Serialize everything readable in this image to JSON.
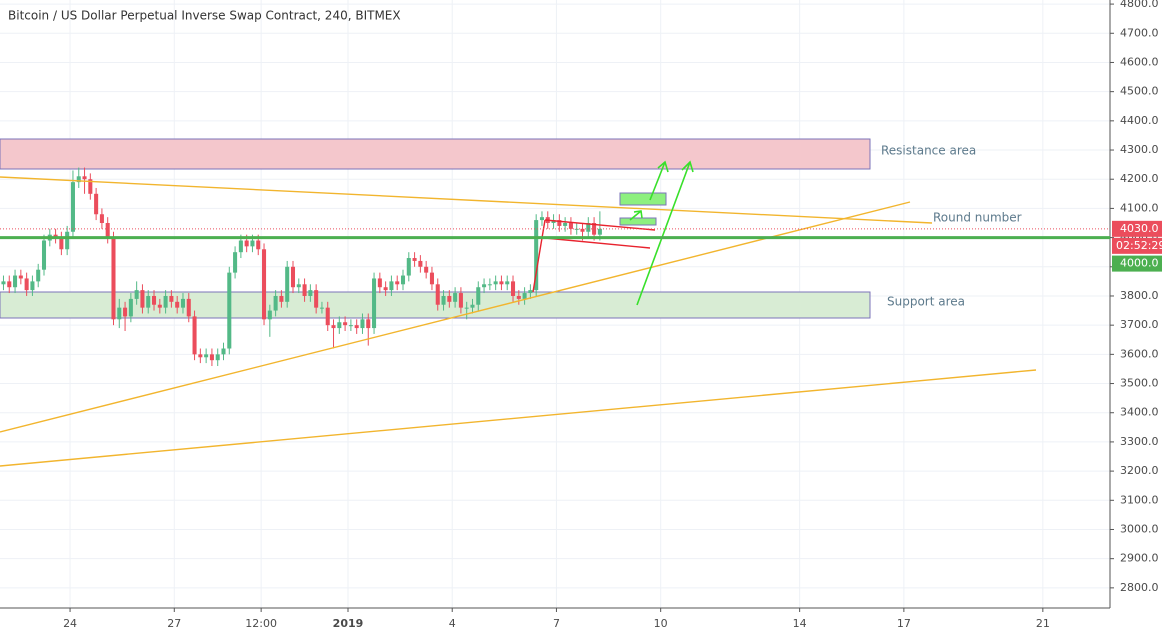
{
  "chart_data": {
    "type": "candlestick",
    "title": "Bitcoin / US Dollar Perpetual Inverse Swap Contract, 240, BITMEX",
    "open": [
      3840,
      3850,
      3830,
      3870,
      3860,
      3820,
      3850,
      3890,
      3990,
      4010,
      4000,
      3960,
      4020,
      4190,
      4210,
      4200,
      4150,
      4080,
      4050,
      4000,
      3720,
      3760,
      3730,
      3790,
      3820,
      3760,
      3800,
      3770,
      3760,
      3800,
      3780,
      3760,
      3790,
      3730,
      3600,
      3590,
      3600,
      3580,
      3600,
      3620,
      3880,
      3950,
      3990,
      3970,
      3990,
      3960,
      3720,
      3750,
      3800,
      3780,
      3900,
      3830,
      3840,
      3800,
      3820,
      3760,
      3760,
      3700,
      3690,
      3710,
      3700,
      3700,
      3690,
      3720,
      3690,
      3860,
      3830,
      3820,
      3850,
      3840,
      3870,
      3930,
      3920,
      3900,
      3880,
      3840,
      3770,
      3800,
      3780,
      3810,
      3760,
      3760,
      3770,
      3830,
      3840,
      3840,
      3850,
      3840,
      3850,
      3800,
      3790,
      3810,
      3820,
      4060,
      4070,
      4050,
      4060,
      4040,
      4050,
      4030,
      4030,
      4020,
      4050,
      4010
    ],
    "high": [
      3870,
      3870,
      3890,
      3890,
      3880,
      3870,
      3910,
      4010,
      4030,
      4030,
      4020,
      4040,
      4230,
      4240,
      4240,
      4220,
      4170,
      4100,
      4070,
      4020,
      3790,
      3780,
      3810,
      3850,
      3840,
      3820,
      3820,
      3790,
      3820,
      3820,
      3800,
      3810,
      3810,
      3750,
      3620,
      3620,
      3620,
      3620,
      3640,
      3900,
      3970,
      4010,
      4010,
      4010,
      4010,
      3980,
      3770,
      3820,
      3820,
      3920,
      3920,
      3860,
      3860,
      3840,
      3840,
      3780,
      3780,
      3720,
      3730,
      3730,
      3720,
      3720,
      3740,
      3740,
      3880,
      3880,
      3850,
      3870,
      3870,
      3890,
      3950,
      3950,
      3940,
      3920,
      3900,
      3860,
      3820,
      3820,
      3830,
      3830,
      3780,
      3790,
      3850,
      3860,
      3860,
      3870,
      3870,
      3870,
      3870,
      3820,
      3830,
      3840,
      4080,
      4090,
      4090,
      4080,
      4080,
      4070,
      4070,
      4050,
      4050,
      4070,
      4070,
      4090
    ],
    "low": [
      3820,
      3810,
      3810,
      3840,
      3800,
      3800,
      3830,
      3870,
      3970,
      3980,
      3940,
      3940,
      4000,
      4170,
      4150,
      4130,
      4060,
      4030,
      3980,
      3700,
      3690,
      3680,
      3710,
      3770,
      3740,
      3740,
      3750,
      3740,
      3740,
      3760,
      3740,
      3740,
      3710,
      3580,
      3570,
      3570,
      3560,
      3560,
      3580,
      3600,
      3860,
      3930,
      3950,
      3950,
      3940,
      3700,
      3660,
      3730,
      3760,
      3760,
      3810,
      3810,
      3780,
      3780,
      3740,
      3740,
      3680,
      3620,
      3670,
      3680,
      3680,
      3670,
      3670,
      3630,
      3670,
      3810,
      3800,
      3800,
      3820,
      3820,
      3850,
      3900,
      3880,
      3860,
      3820,
      3750,
      3750,
      3760,
      3760,
      3740,
      3720,
      3740,
      3750,
      3810,
      3820,
      3820,
      3820,
      3820,
      3780,
      3770,
      3770,
      3790,
      3800,
      4040,
      4030,
      4030,
      4020,
      4020,
      4010,
      4010,
      3990,
      4000,
      3990,
      3990
    ],
    "close": [
      3850,
      3830,
      3870,
      3860,
      3820,
      3850,
      3890,
      3990,
      4010,
      4000,
      3960,
      4020,
      4190,
      4210,
      4200,
      4150,
      4080,
      4050,
      4000,
      3720,
      3760,
      3730,
      3790,
      3820,
      3760,
      3800,
      3770,
      3760,
      3800,
      3780,
      3760,
      3790,
      3730,
      3600,
      3590,
      3600,
      3580,
      3600,
      3620,
      3880,
      3950,
      3990,
      3970,
      3990,
      3960,
      3720,
      3750,
      3800,
      3780,
      3900,
      3830,
      3840,
      3800,
      3820,
      3760,
      3760,
      3700,
      3690,
      3710,
      3700,
      3700,
      3690,
      3720,
      3690,
      3860,
      3830,
      3820,
      3850,
      3840,
      3870,
      3930,
      3920,
      3900,
      3880,
      3840,
      3770,
      3800,
      3780,
      3810,
      3760,
      3760,
      3770,
      3830,
      3840,
      3840,
      3850,
      3840,
      3850,
      3800,
      3790,
      3810,
      3820,
      4060,
      4070,
      4050,
      4060,
      4040,
      4050,
      4030,
      4030,
      4020,
      4050,
      4010,
      4030
    ],
    "up_color": "#53b987",
    "down_color": "#eb4d5c",
    "xlim": [
      -0.6,
      191.1
    ],
    "xticks": [
      {
        "value": 11.5,
        "label": "24"
      },
      {
        "value": 29.5,
        "label": "27"
      },
      {
        "value": 44.5,
        "label": "12:00"
      },
      {
        "value": 59.5,
        "label": "2019"
      },
      {
        "value": 77.5,
        "label": "4"
      },
      {
        "value": 95.5,
        "label": "7"
      },
      {
        "value": 113.5,
        "label": "10"
      },
      {
        "value": 137.5,
        "label": "14"
      },
      {
        "value": 155.5,
        "label": "17"
      },
      {
        "value": 179.5,
        "label": "21"
      }
    ],
    "ylim": [
      2731,
      4814
    ],
    "yticks": [
      {
        "value": 2800,
        "label": "2800.0"
      },
      {
        "value": 2900,
        "label": "2900.0"
      },
      {
        "value": 3000,
        "label": "3000.0"
      },
      {
        "value": 3100,
        "label": "3100.0"
      },
      {
        "value": 3200,
        "label": "3200.0"
      },
      {
        "value": 3300,
        "label": "3300.0"
      },
      {
        "value": 3400,
        "label": "3400.0"
      },
      {
        "value": 3500,
        "label": "3500.0"
      },
      {
        "value": 3600,
        "label": "3600.0"
      },
      {
        "value": 3700,
        "label": "3700.0"
      },
      {
        "value": 3800,
        "label": "3800.0"
      },
      {
        "value": 3900,
        "label": "3900.0"
      },
      {
        "value": 4000,
        "label": "4000.0"
      },
      {
        "value": 4100,
        "label": "4100.0"
      },
      {
        "value": 4200,
        "label": "4200.0"
      },
      {
        "value": 4300,
        "label": "4300.0"
      },
      {
        "value": 4400,
        "label": "4400.0"
      },
      {
        "value": 4500,
        "label": "4500.0"
      },
      {
        "value": 4600,
        "label": "4600.0"
      },
      {
        "value": 4700,
        "label": "4700.0"
      },
      {
        "value": 4800,
        "label": "4800.0"
      }
    ],
    "grid": true,
    "last_price": {
      "value": 4030,
      "label": "4030.0"
    },
    "countdown": "02:52:29",
    "level": {
      "value": 4000,
      "label": "4000.0"
    },
    "annotations": {
      "resistance": "Resistance area",
      "support": "Support area",
      "round": "Round number"
    }
  }
}
